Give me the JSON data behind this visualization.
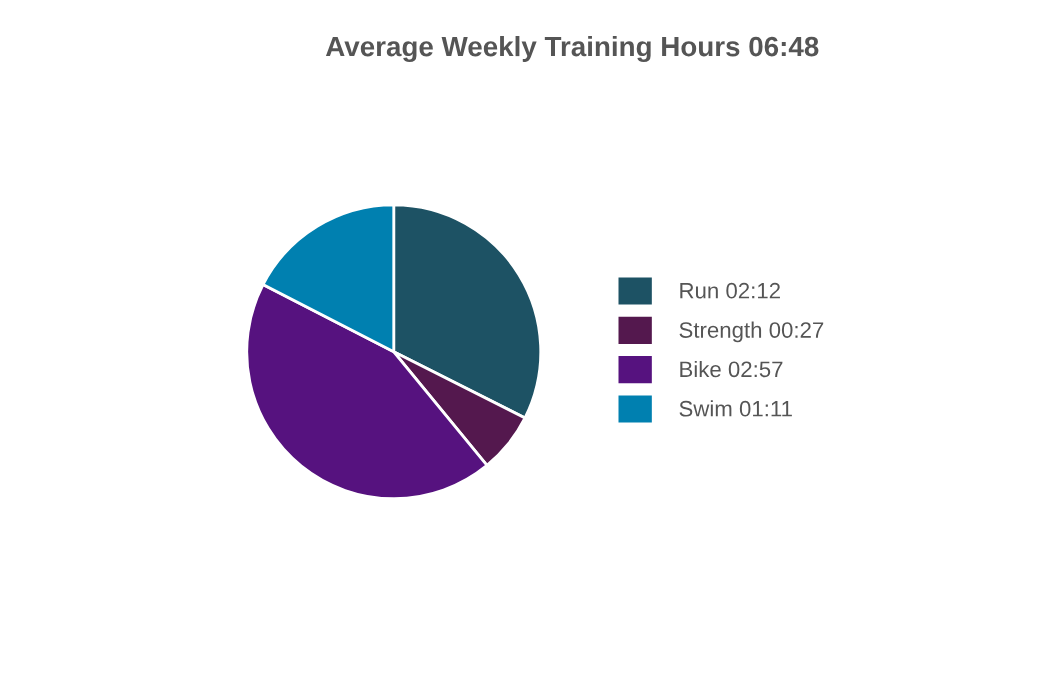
{
  "chart_data": {
    "type": "pie",
    "title": "Average Weekly Training Hours 06:48",
    "categories": [
      "Run 02:12",
      "Strength 00:27",
      "Bike 02:57",
      "Swim 01:11"
    ],
    "values": [
      132,
      27,
      177,
      71
    ],
    "colors": [
      "#1d5264",
      "#54184e",
      "#56127f",
      "#0080b0"
    ],
    "legend": "right"
  }
}
